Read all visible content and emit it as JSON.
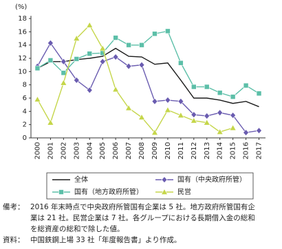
{
  "chart_data": {
    "type": "line",
    "y_unit_label": "(%)",
    "x": [
      "2000",
      "2001",
      "2002",
      "2003",
      "2004",
      "2005",
      "2006",
      "2007",
      "2008",
      "2009",
      "2010",
      "2011",
      "2012",
      "2013",
      "2014",
      "2015",
      "2016",
      "2017"
    ],
    "ylim": [
      0,
      18
    ],
    "yticks": [
      0,
      2,
      4,
      6,
      8,
      10,
      12,
      14,
      16,
      18
    ],
    "grid": false,
    "series": [
      {
        "name": "全体",
        "color": "#1a1a1a",
        "marker": "none",
        "values": [
          10.5,
          11.5,
          11.5,
          11.8,
          12.0,
          12.3,
          13.5,
          12.3,
          12.2,
          11.1,
          11.3,
          8.7,
          6.0,
          6.0,
          5.7,
          5.2,
          5.5,
          4.7
        ]
      },
      {
        "name": "国有（中央政府所管）",
        "color": "#6a5cb0",
        "marker": "diamond",
        "values": [
          10.8,
          14.3,
          11.5,
          8.7,
          7.2,
          11.5,
          12.2,
          10.8,
          11.0,
          5.5,
          5.7,
          5.5,
          3.5,
          3.3,
          3.8,
          3.4,
          0.8,
          1.1
        ]
      },
      {
        "name": "国有（地方政府所管）",
        "color": "#5cbfa8",
        "marker": "square",
        "values": [
          10.5,
          11.7,
          9.8,
          11.9,
          12.7,
          12.8,
          15.1,
          14.0,
          14.0,
          15.7,
          16.1,
          11.3,
          7.7,
          7.7,
          6.8,
          6.2,
          7.9,
          6.7
        ]
      },
      {
        "name": "民営",
        "color": "#c5d64a",
        "marker": "triangle",
        "values": [
          5.8,
          2.3,
          8.3,
          15.0,
          17.0,
          13.5,
          7.3,
          4.5,
          3.1,
          0.8,
          4.2,
          3.4,
          2.6,
          2.3,
          0.9,
          1.5,
          null,
          null
        ]
      }
    ]
  },
  "notes": [
    {
      "label": "備考：",
      "lines": [
        "2016 年末時点で中央政府所管国有企業は 5 社。地方政府所管国有企",
        "業は 21 社。民営企業は 7 社。各グループにおける長期借入金の総和",
        "を総資産の総和で除した値。"
      ]
    },
    {
      "label": "資料：",
      "lines": [
        "中国鉄鋼上場 33 社「年度報告書」より作成。"
      ]
    }
  ]
}
